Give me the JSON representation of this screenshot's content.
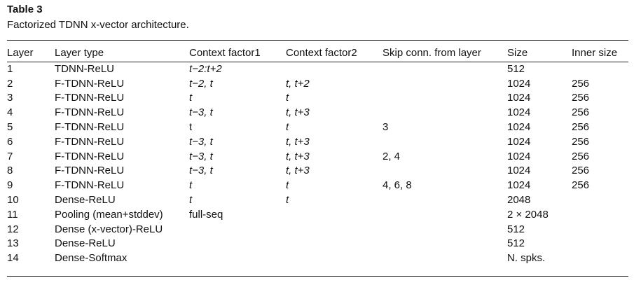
{
  "title": "Table 3",
  "caption": "Factorized TDNN x-vector architecture.",
  "headers": [
    "Layer",
    "Layer type",
    "Context factor1",
    "Context factor2",
    "Skip conn. from layer",
    "Size",
    "Inner size"
  ],
  "rows": [
    [
      "1",
      "TDNN-ReLU",
      "t−2:t+2",
      "",
      "",
      "512",
      ""
    ],
    [
      "2",
      "F-TDNN-ReLU",
      "t−2, t",
      "t, t+2",
      "",
      "1024",
      "256"
    ],
    [
      "3",
      "F-TDNN-ReLU",
      "t",
      "t",
      "",
      "1024",
      "256"
    ],
    [
      "4",
      "F-TDNN-ReLU",
      "t−3, t",
      "t, t+3",
      "",
      "1024",
      "256"
    ],
    [
      "5",
      "F-TDNN-ReLU",
      "t",
      "t",
      "3",
      "1024",
      "256"
    ],
    [
      "6",
      "F-TDNN-ReLU",
      "t−3, t",
      "t, t+3",
      "",
      "1024",
      "256"
    ],
    [
      "7",
      "F-TDNN-ReLU",
      "t−3, t",
      "t, t+3",
      "2, 4",
      "1024",
      "256"
    ],
    [
      "8",
      "F-TDNN-ReLU",
      "t−3, t",
      "t, t+3",
      "",
      "1024",
      "256"
    ],
    [
      "9",
      "F-TDNN-ReLU",
      "t",
      "t",
      "4, 6, 8",
      "1024",
      "256"
    ],
    [
      "10",
      "Dense-ReLU",
      "t",
      "t",
      "",
      "2048",
      ""
    ],
    [
      "11",
      "Pooling (mean+stddev)",
      "full-seq",
      "",
      "",
      "2 × 2048",
      ""
    ],
    [
      "12",
      "Dense (x-vector)-ReLU",
      "",
      "",
      "",
      "512",
      ""
    ],
    [
      "13",
      "Dense-ReLU",
      "",
      "",
      "",
      "512",
      ""
    ],
    [
      "14",
      "Dense-Softmax",
      "",
      "",
      "",
      "N. spks.",
      ""
    ]
  ]
}
